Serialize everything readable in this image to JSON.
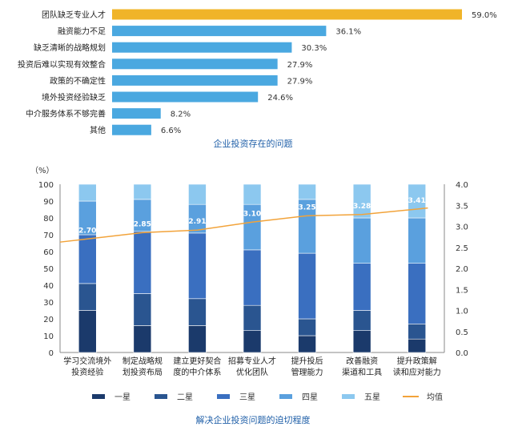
{
  "chart_data": [
    {
      "type": "bar",
      "orientation": "horizontal",
      "caption": "企业投资存在的问题",
      "categories": [
        "团队缺乏专业人才",
        "融资能力不足",
        "缺乏清晰的战略规划",
        "投资后难以实现有效整合",
        "政策的不确定性",
        "境外投资经验缺乏",
        "中介服务体系不够完善",
        "其他"
      ],
      "value_labels": [
        "59.0%",
        "36.1%",
        "30.3%",
        "27.9%",
        "27.9%",
        "24.6%",
        "8.2%",
        "6.6%"
      ],
      "values": [
        59.0,
        36.1,
        30.3,
        27.9,
        27.9,
        24.6,
        8.2,
        6.6
      ],
      "xlim": [
        0,
        59.0
      ],
      "colors": {
        "highlight": "#f0b429",
        "bar": "#4aa8e0"
      }
    },
    {
      "type": "bar",
      "stacked": true,
      "caption": "解决企业投资问题的迫切程度",
      "y_unit": "（%）",
      "ylim": [
        0,
        100
      ],
      "yticks": [
        "0",
        "10",
        "20",
        "30",
        "40",
        "50",
        "60",
        "70",
        "80",
        "90",
        "100"
      ],
      "y2lim": [
        0,
        4
      ],
      "y2ticks": [
        "0.0",
        "0.5",
        "1.0",
        "1.5",
        "2.0",
        "2.5",
        "3.0",
        "3.5",
        "4.0"
      ],
      "categories": [
        [
          "学习交流境外",
          "投资经验"
        ],
        [
          "制定战略规",
          "划投资布局"
        ],
        [
          "建立更好契合",
          "度的中介体系"
        ],
        [
          "招募专业人才",
          "优化团队"
        ],
        [
          "提升投后",
          "管理能力"
        ],
        [
          "改善融资",
          "渠道和工具"
        ],
        [
          "提升政策解",
          "读和应对能力"
        ]
      ],
      "series": [
        {
          "name": "一星",
          "color": "#1b3a6b",
          "values": [
            25,
            16,
            16,
            13,
            10,
            13,
            8
          ]
        },
        {
          "name": "二星",
          "color": "#2a5590",
          "values": [
            16,
            19,
            16,
            15,
            10,
            12,
            9
          ]
        },
        {
          "name": "三星",
          "color": "#3a6fc0",
          "values": [
            29,
            37,
            39,
            33,
            39,
            28,
            36
          ]
        },
        {
          "name": "四星",
          "color": "#5aa0de",
          "values": [
            20,
            19,
            17,
            27,
            32,
            27,
            27
          ]
        },
        {
          "name": "五星",
          "color": "#8cc8ef",
          "values": [
            10,
            9,
            12,
            12,
            9,
            20,
            20
          ]
        }
      ],
      "line": {
        "name": "均值",
        "color": "#f2a33a",
        "values": [
          2.7,
          2.85,
          2.91,
          3.1,
          3.25,
          3.28,
          3.41
        ],
        "labels": [
          "2.70",
          "2.85",
          "2.91",
          "3.10",
          "3.25",
          "3.28",
          "3.41"
        ]
      }
    }
  ]
}
